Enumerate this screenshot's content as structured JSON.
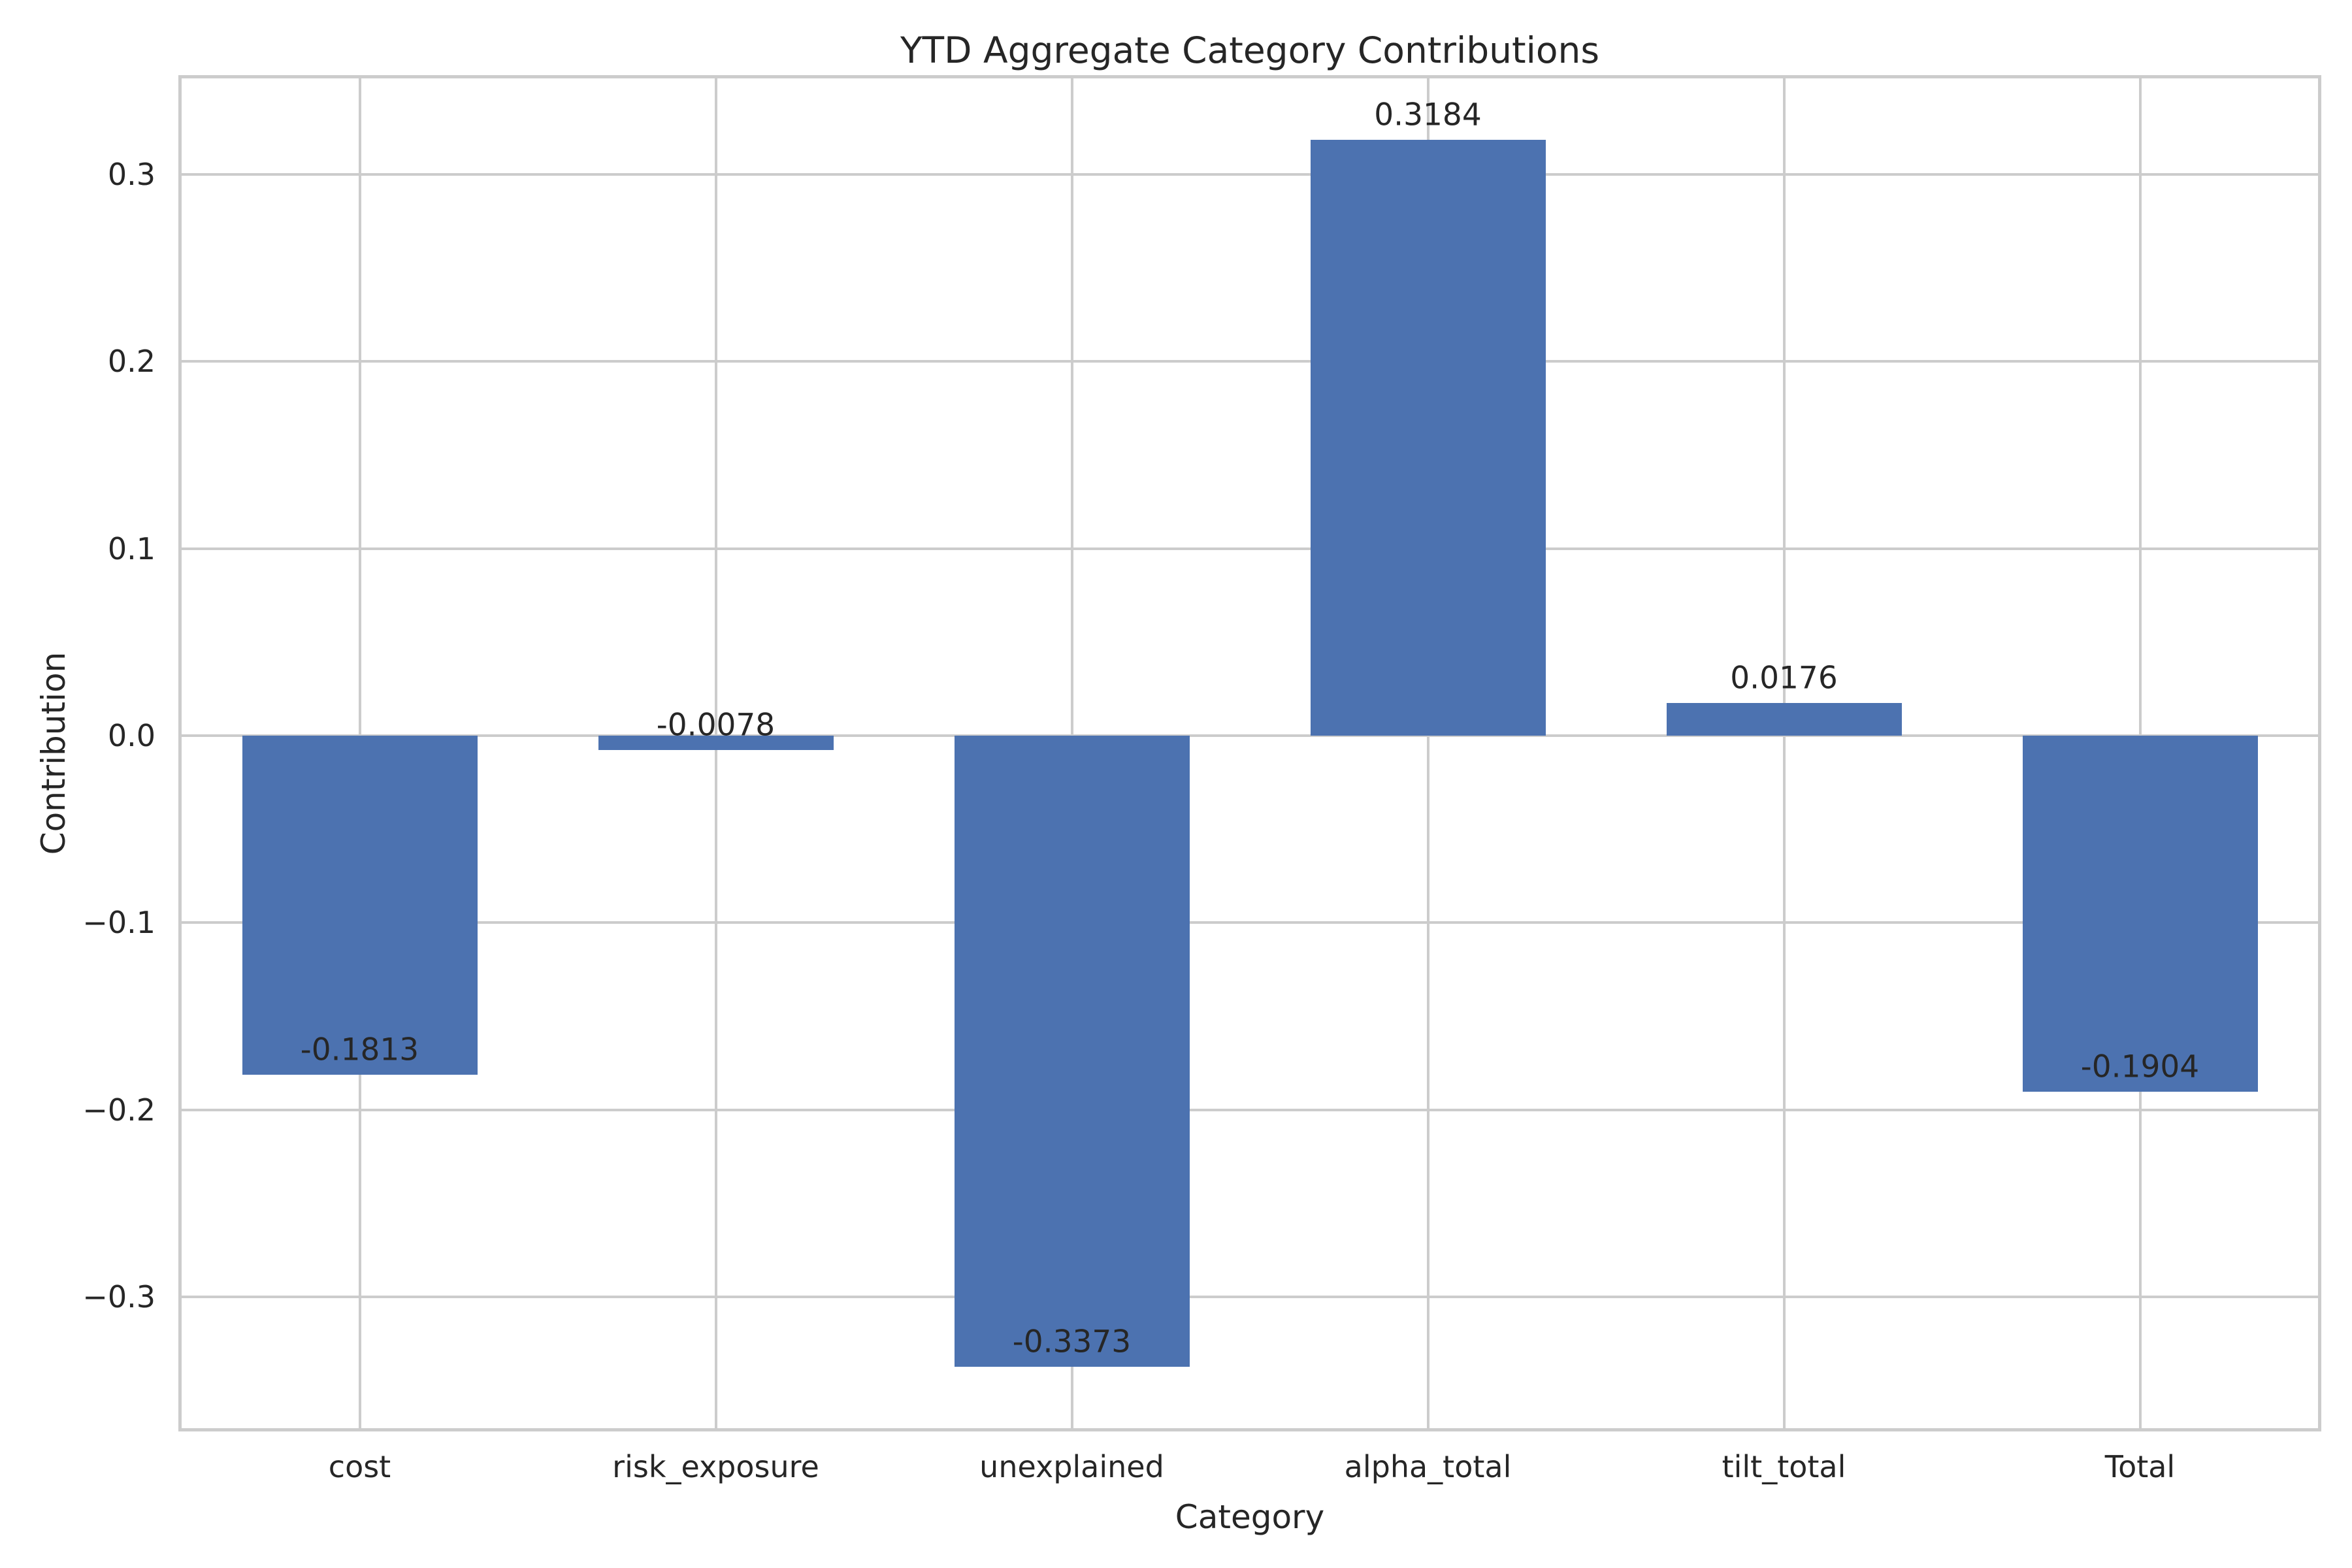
{
  "chart_data": {
    "type": "bar",
    "title": "YTD Aggregate Category Contributions",
    "xlabel": "Category",
    "ylabel": "Contribution",
    "categories": [
      "cost",
      "risk_exposure",
      "unexplained",
      "alpha_total",
      "tilt_total",
      "Total"
    ],
    "values": [
      -0.1813,
      -0.0078,
      -0.3373,
      0.3184,
      0.0176,
      -0.1904
    ],
    "bar_labels": [
      "-0.1813",
      "-0.0078",
      "-0.3373",
      "0.3184",
      "0.0176",
      "-0.1904"
    ],
    "yticks": [
      0.3,
      0.2,
      0.1,
      0.0,
      -0.1,
      -0.2,
      -0.3
    ],
    "ytick_labels": [
      "0.3",
      "0.2",
      "0.1",
      "0.0",
      "−0.1",
      "−0.2",
      "−0.3"
    ],
    "ylim": [
      -0.3701,
      0.3512
    ],
    "grid": true,
    "legend": "none",
    "bar_color": "#4C72B0",
    "grid_color": "#CCCCCC",
    "text_color": "#262626",
    "background_color": "#FFFFFF"
  }
}
